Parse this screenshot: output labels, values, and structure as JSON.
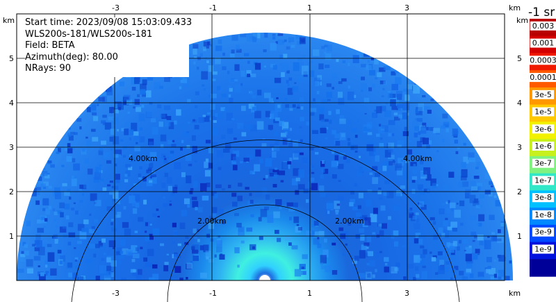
{
  "info": {
    "start_time": "Start time: 2023/09/08 15:03:09.433",
    "instrument": "WLS200s-181/WLS200s-181",
    "field": "Field: BETA",
    "azimuth": "Azimuth(deg): 80.00",
    "nrays": "NRays: 90"
  },
  "axes": {
    "x_ticks": [
      "-3",
      "-1",
      "1",
      "3"
    ],
    "y_ticks": [
      "1",
      "2",
      "3",
      "4",
      "5"
    ],
    "unit": "km"
  },
  "range_rings": {
    "inner_label": "2.00km",
    "outer_label": "4.00km"
  },
  "colorbar": {
    "unit_label": "-1 sr",
    "labels": [
      "0.003",
      "0.001",
      "0.0003",
      "0.0001",
      "3e-5",
      "1e-5",
      "3e-6",
      "1e-6",
      "3e-7",
      "1e-7",
      "3e-8",
      "1e-8",
      "3e-9",
      "1e-9"
    ],
    "colors": [
      "#b80000",
      "#d40000",
      "#f01a00",
      "#ff5a00",
      "#ff9800",
      "#ffc800",
      "#f2f200",
      "#c8f01c",
      "#7ff27f",
      "#30e8c8",
      "#00c0ff",
      "#0088ff",
      "#0048ff",
      "#0010dd",
      "#000099"
    ]
  }
}
